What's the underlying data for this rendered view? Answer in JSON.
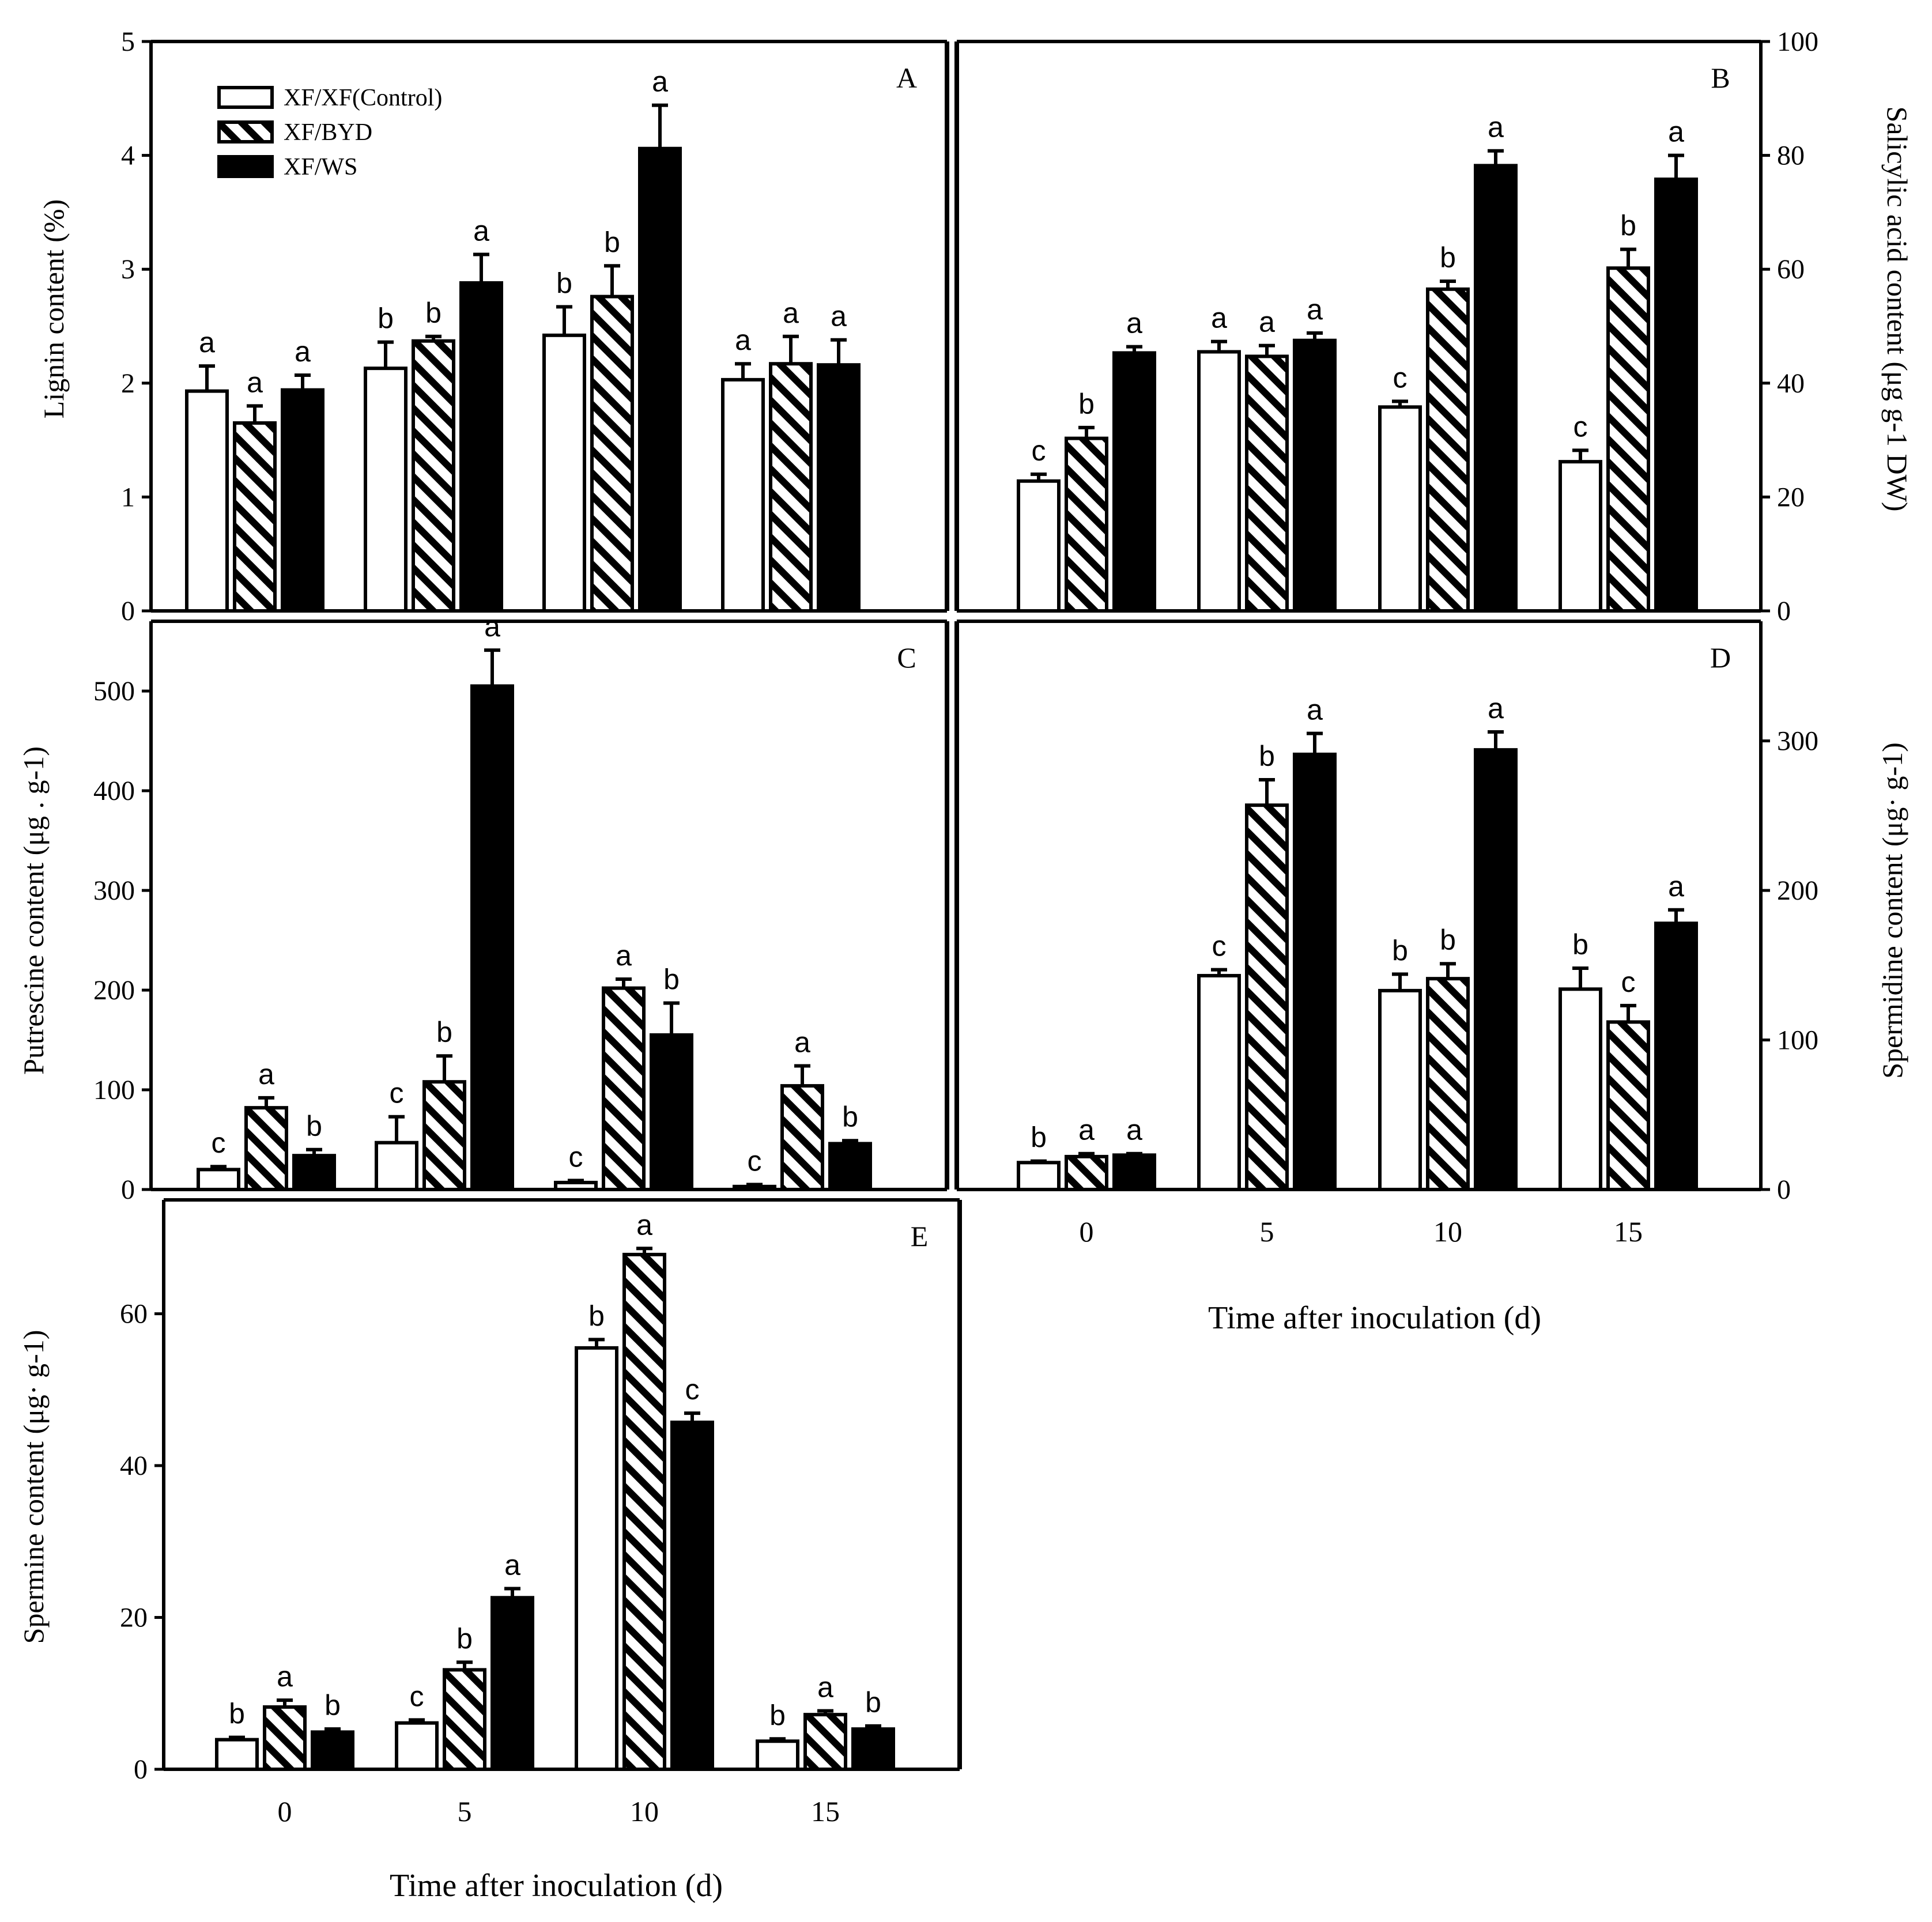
{
  "colors": {
    "ink": "#000000",
    "paper": "#ffffff"
  },
  "legend": [
    {
      "label": "XF/XF(Control)",
      "fill": "white"
    },
    {
      "label": "XF/BYD",
      "fill": "hatch"
    },
    {
      "label": "XF/WS",
      "fill": "black"
    }
  ],
  "x_axis_title": "Time after inoculation (d)",
  "chart_data": [
    {
      "id": "A",
      "type": "bar",
      "panel_label": "A",
      "ylabel": "Lignin content (%)",
      "categories": [
        "0",
        "5",
        "10",
        "15"
      ],
      "show_tick_labels": false,
      "ylim": [
        0,
        5
      ],
      "yticks": [
        0,
        1,
        2,
        3,
        4,
        5
      ],
      "series": [
        {
          "name": "XF/XF(Control)",
          "values": [
            1.93,
            2.13,
            2.42,
            2.03
          ],
          "errors": [
            0.22,
            0.23,
            0.25,
            0.14
          ],
          "letters": [
            "a",
            "b",
            "b",
            "a"
          ]
        },
        {
          "name": "XF/BYD",
          "values": [
            1.65,
            2.37,
            2.76,
            2.17
          ],
          "errors": [
            0.15,
            0.04,
            0.27,
            0.24
          ],
          "letters": [
            "a",
            "b",
            "b",
            "a"
          ]
        },
        {
          "name": "XF/WS",
          "values": [
            1.94,
            2.88,
            4.06,
            2.16
          ],
          "errors": [
            0.13,
            0.25,
            0.38,
            0.22
          ],
          "letters": [
            "a",
            "a",
            "a",
            "a"
          ]
        }
      ]
    },
    {
      "id": "B",
      "type": "bar",
      "panel_label": "B",
      "ylabel": "Salicylic acid content (μg g-1 DW)",
      "categories": [
        "0",
        "5",
        "10",
        "15"
      ],
      "show_tick_labels": false,
      "ylim": [
        0,
        100
      ],
      "yticks": [
        0,
        20,
        40,
        60,
        80,
        100
      ],
      "series": [
        {
          "name": "XF/XF(Control)",
          "values": [
            22.8,
            45.5,
            35.8,
            26.2
          ],
          "errors": [
            1.2,
            1.8,
            1.0,
            2.0
          ],
          "letters": [
            "c",
            "a",
            "c",
            "c"
          ]
        },
        {
          "name": "XF/BYD",
          "values": [
            30.3,
            44.7,
            56.5,
            60.2
          ],
          "errors": [
            1.9,
            1.9,
            1.4,
            3.3
          ],
          "letters": [
            "b",
            "a",
            "b",
            "b"
          ]
        },
        {
          "name": "XF/WS",
          "values": [
            45.3,
            47.5,
            78.2,
            75.8
          ],
          "errors": [
            1.1,
            1.3,
            2.6,
            4.2
          ],
          "letters": [
            "a",
            "a",
            "a",
            "a"
          ]
        }
      ]
    },
    {
      "id": "C",
      "type": "bar",
      "panel_label": "C",
      "ylabel": "Putrescine content (μg . g-1)",
      "categories": [
        "0",
        "5",
        "10",
        "15"
      ],
      "show_tick_labels": false,
      "ylim": [
        0,
        570
      ],
      "yticks": [
        0,
        100,
        200,
        300,
        400,
        500
      ],
      "series": [
        {
          "name": "XF/XF(Control)",
          "values": [
            20,
            47,
            7,
            3
          ],
          "errors": [
            3,
            26,
            2,
            2
          ],
          "letters": [
            "c",
            "c",
            "c",
            "c"
          ]
        },
        {
          "name": "XF/BYD",
          "values": [
            82,
            108,
            202,
            104
          ],
          "errors": [
            10,
            26,
            9,
            20
          ],
          "letters": [
            "a",
            "b",
            "a",
            "a"
          ]
        },
        {
          "name": "XF/WS",
          "values": [
            34,
            505,
            155,
            46
          ],
          "errors": [
            6,
            36,
            32,
            3
          ],
          "letters": [
            "b",
            "a",
            "b",
            "b"
          ]
        }
      ]
    },
    {
      "id": "D",
      "type": "bar",
      "panel_label": "D",
      "ylabel": "Spermidine content (μg· g-1)",
      "categories": [
        "0",
        "5",
        "10",
        "15"
      ],
      "show_tick_labels": true,
      "ylim": [
        0,
        380
      ],
      "yticks": [
        0,
        100,
        200,
        300
      ],
      "series": [
        {
          "name": "XF/XF(Control)",
          "values": [
            18,
            143,
            133,
            134
          ],
          "errors": [
            1,
            4,
            11,
            14
          ],
          "letters": [
            "b",
            "c",
            "b",
            "b"
          ]
        },
        {
          "name": "XF/BYD",
          "values": [
            22,
            257,
            141,
            112
          ],
          "errors": [
            2,
            17,
            10,
            11
          ],
          "letters": [
            "a",
            "b",
            "b",
            "c"
          ]
        },
        {
          "name": "XF/WS",
          "values": [
            23,
            291,
            294,
            178
          ],
          "errors": [
            1,
            14,
            12,
            9
          ],
          "letters": [
            "a",
            "a",
            "a",
            "a"
          ]
        }
      ]
    },
    {
      "id": "E",
      "type": "bar",
      "panel_label": "E",
      "ylabel": "Spermine content (μg· g-1)",
      "categories": [
        "0",
        "5",
        "10",
        "15"
      ],
      "show_tick_labels": true,
      "ylim": [
        0,
        75
      ],
      "yticks": [
        0,
        20,
        40,
        60
      ],
      "series": [
        {
          "name": "XF/XF(Control)",
          "values": [
            3.9,
            6.1,
            55.5,
            3.7
          ],
          "errors": [
            0.3,
            0.4,
            1.1,
            0.3
          ],
          "letters": [
            "b",
            "c",
            "b",
            "b"
          ]
        },
        {
          "name": "XF/BYD",
          "values": [
            8.2,
            13.1,
            67.8,
            7.2
          ],
          "errors": [
            0.9,
            1.0,
            0.8,
            0.5
          ],
          "letters": [
            "a",
            "b",
            "a",
            "a"
          ]
        },
        {
          "name": "XF/WS",
          "values": [
            4.9,
            22.6,
            45.7,
            5.3
          ],
          "errors": [
            0.4,
            1.2,
            1.2,
            0.4
          ],
          "letters": [
            "b",
            "a",
            "c",
            "b"
          ]
        }
      ]
    }
  ]
}
